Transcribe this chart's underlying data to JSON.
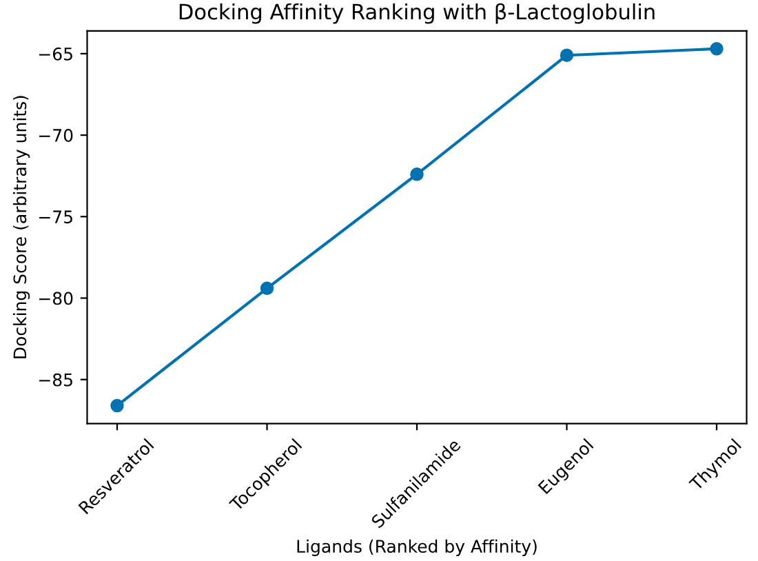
{
  "chart_data": {
    "type": "line",
    "title": "Docking Affinity Ranking with β-Lactoglobulin",
    "xlabel": "Ligands (Ranked by Affinity)",
    "ylabel": "Docking Score (arbitrary units)",
    "categories": [
      "Resveratrol",
      "Tocopherol",
      "Sulfanilamide",
      "Eugenol",
      "Thymol"
    ],
    "series": [
      {
        "color": "#0072b2",
        "values": [
          -86.6,
          -79.4,
          -72.4,
          -65.1,
          -64.7
        ]
      }
    ],
    "ylim": [
      -87.7,
      -63.6
    ],
    "yticks": [
      {
        "value": -85,
        "label": "−85"
      },
      {
        "value": -80,
        "label": "−80"
      },
      {
        "value": -75,
        "label": "−75"
      },
      {
        "value": -70,
        "label": "−70"
      },
      {
        "value": -65,
        "label": "−65"
      }
    ],
    "marker": "circle",
    "line_style": "solid",
    "grid": false,
    "legend": false
  }
}
